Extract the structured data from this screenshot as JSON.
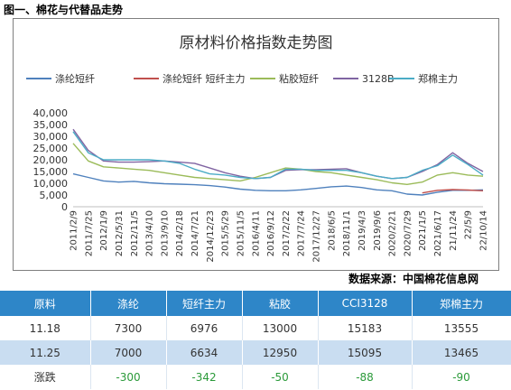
{
  "figure_caption": "图一、棉花与代替品走势",
  "source_text": "数据来源：中国棉花信息网",
  "chart_data": {
    "type": "line",
    "title": "原材料价格指数走势图",
    "xlabel": "",
    "ylabel": "",
    "ylim": [
      0,
      40000
    ],
    "y_ticks": [
      "0",
      "5,000",
      "10,000",
      "15,000",
      "20,000",
      "25,000",
      "30,000",
      "35,000",
      "40,000"
    ],
    "x_ticks": [
      "2011/2/9",
      "2011/7/25",
      "2012/1/9",
      "2012/5/31",
      "2012/11/5",
      "2013/4/10",
      "2013/9/10",
      "2014/2/18",
      "2014/7/21",
      "2014/12/23",
      "2015/5/29",
      "2015/11/5",
      "2016/4/11",
      "2016/9/12",
      "2017/2/22",
      "2017/7/24",
      "2017/12/27",
      "2018/6/5",
      "2018/11/1",
      "2019/4/3",
      "2019/9/6",
      "2020/2/21",
      "2020/7/29",
      "2021/1/5",
      "2021/6/17",
      "21/11/24",
      "22/5/9",
      "22/10/14"
    ],
    "grid": false,
    "legend_position": "top",
    "series": [
      {
        "name": "涤纶短纤",
        "color": "#4f81bd",
        "values": [
          14000,
          12500,
          11000,
          10500,
          10800,
          10200,
          9800,
          9600,
          9400,
          9000,
          8400,
          7500,
          7000,
          6800,
          6800,
          7200,
          7800,
          8500,
          8800,
          8200,
          7200,
          6800,
          5400,
          5000,
          6200,
          7000,
          7000,
          7200
        ]
      },
      {
        "name": "涤纶短纤 短纤主力",
        "color": "#c0504d",
        "values": [
          null,
          null,
          null,
          null,
          null,
          null,
          null,
          null,
          null,
          null,
          null,
          null,
          null,
          null,
          null,
          null,
          null,
          null,
          null,
          null,
          null,
          null,
          null,
          5900,
          7000,
          7300,
          7100,
          6800
        ]
      },
      {
        "name": "粘胶短纤",
        "color": "#9bbb59",
        "values": [
          27000,
          19500,
          17000,
          16500,
          16000,
          15500,
          14500,
          13500,
          12500,
          12000,
          11500,
          11000,
          12500,
          14500,
          16500,
          16000,
          15000,
          14500,
          13500,
          12500,
          11500,
          10200,
          9500,
          10500,
          13500,
          14500,
          13500,
          13000
        ]
      },
      {
        "name": "3128B",
        "color": "#8064a2",
        "values": [
          33000,
          24000,
          19500,
          19000,
          19000,
          19200,
          19500,
          19000,
          18500,
          16500,
          14500,
          13000,
          12000,
          12500,
          15500,
          15800,
          15800,
          16000,
          16200,
          14500,
          13000,
          12000,
          12500,
          15000,
          18000,
          23000,
          18500,
          15000
        ]
      },
      {
        "name": "郑棉主力",
        "color": "#4bacc6",
        "values": [
          32000,
          23000,
          20000,
          20000,
          20000,
          20000,
          19500,
          18500,
          16000,
          14000,
          13500,
          12500,
          12000,
          12500,
          16000,
          16000,
          15500,
          15500,
          15500,
          14500,
          13000,
          12000,
          12500,
          15500,
          17500,
          22000,
          18000,
          13500
        ]
      }
    ]
  },
  "table": {
    "header": [
      "原料",
      "涤纶",
      "短纤主力",
      "粘胶",
      "CCI3128",
      "郑棉主力"
    ],
    "rows": [
      [
        "11.18",
        "7300",
        "6976",
        "13000",
        "15183",
        "13555"
      ],
      [
        "11.25",
        "7000",
        "6634",
        "12950",
        "15095",
        "13465"
      ],
      [
        "涨跌",
        "-300",
        "-342",
        "-50",
        "-88",
        "-90"
      ]
    ]
  }
}
